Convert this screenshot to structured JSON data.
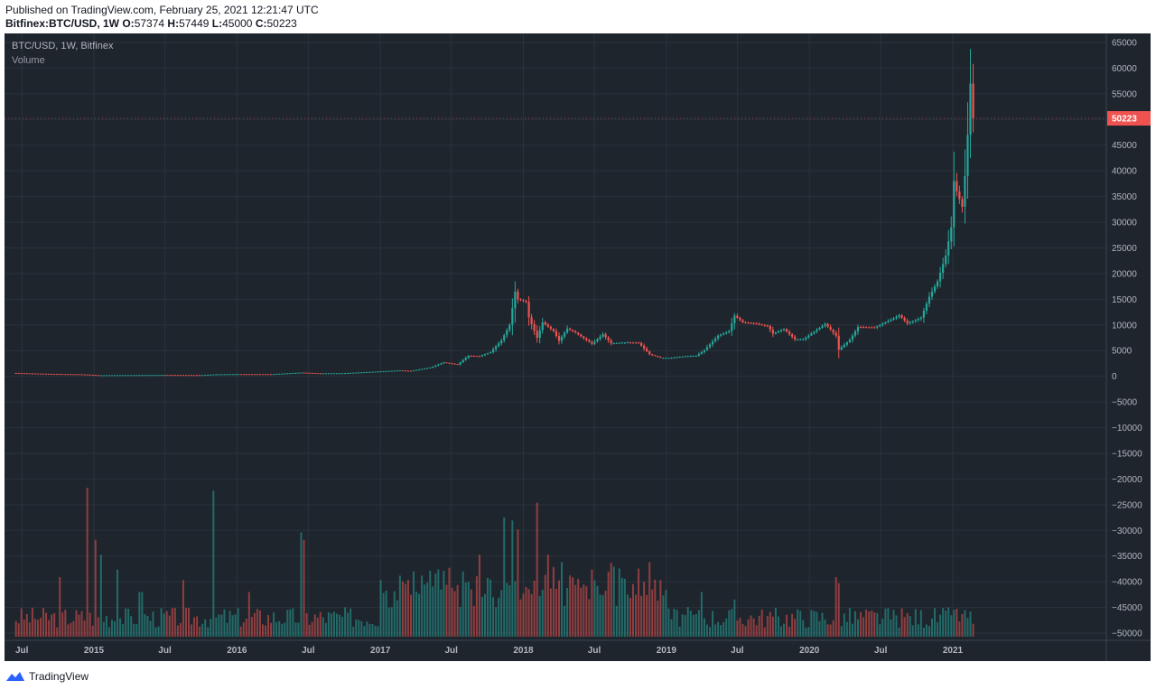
{
  "header": {
    "published": "Published on TradingView.com, February 25, 2021 12:21:47 UTC",
    "symbol": "Bitfinex:BTC/USD, 1W",
    "ohlc": [
      {
        "label": "O:",
        "value": "57374"
      },
      {
        "label": "H:",
        "value": "57449"
      },
      {
        "label": "L:",
        "value": "45000"
      },
      {
        "label": "C:",
        "value": "50223"
      }
    ]
  },
  "legend": {
    "main": "BTC/USD, 1W, Bitfinex",
    "volume": "Volume"
  },
  "footer": {
    "brand": "TradingView"
  },
  "colors": {
    "up": "#26a69a",
    "down": "#ef5350",
    "background": "#1e252d",
    "grid": "#2a323c",
    "price_badge": "#ef5350"
  },
  "chart_data": {
    "type": "candlestick",
    "x_axis": {
      "labels": [
        "Jul",
        "2015",
        "Jul",
        "2016",
        "Jul",
        "2017",
        "Jul",
        "2018",
        "Jul",
        "2019",
        "Jul",
        "2020",
        "Jul",
        "2021"
      ],
      "dates": [
        "2014-07-01",
        "2015-01-01",
        "2015-07-01",
        "2016-01-01",
        "2016-07-01",
        "2017-01-01",
        "2017-07-01",
        "2018-01-01",
        "2018-07-01",
        "2019-01-01",
        "2019-07-01",
        "2020-01-01",
        "2020-07-01",
        "2021-01-01"
      ]
    },
    "y_axis": {
      "ticks": [
        65000,
        60000,
        55000,
        50000,
        45000,
        40000,
        35000,
        30000,
        25000,
        20000,
        15000,
        10000,
        5000,
        0,
        -5000,
        -10000,
        -15000,
        -20000,
        -25000,
        -30000,
        -35000,
        -40000,
        -45000,
        -50000
      ],
      "tick_labels": [
        "65000",
        "60000",
        "55000",
        "50000",
        "45000",
        "40000",
        "35000",
        "30000",
        "25000",
        "20000",
        "15000",
        "10000",
        "5000",
        "0",
        "−5000",
        "−10000",
        "−15000",
        "−20000",
        "−25000",
        "−30000",
        "−35000",
        "−40000",
        "−45000",
        "−50000"
      ],
      "range": [
        -50000,
        65000
      ]
    },
    "last_price": 50223,
    "last_price_label": "50223",
    "price_series": {
      "name": "BTC/USD",
      "interval": "1W",
      "points": [
        [
          "2014-06-09",
          650
        ],
        [
          "2014-09-01",
          480
        ],
        [
          "2014-12-01",
          380
        ],
        [
          "2015-01-12",
          210
        ],
        [
          "2015-04-01",
          240
        ],
        [
          "2015-07-01",
          270
        ],
        [
          "2015-10-01",
          245
        ],
        [
          "2015-11-09",
          380
        ],
        [
          "2016-01-01",
          430
        ],
        [
          "2016-04-01",
          420
        ],
        [
          "2016-06-13",
          730
        ],
        [
          "2016-08-01",
          580
        ],
        [
          "2016-10-01",
          610
        ],
        [
          "2017-01-01",
          960
        ],
        [
          "2017-02-20",
          1150
        ],
        [
          "2017-03-20",
          1050
        ],
        [
          "2017-05-08",
          1700
        ],
        [
          "2017-06-12",
          2700
        ],
        [
          "2017-07-17",
          2300
        ],
        [
          "2017-08-14",
          4000
        ],
        [
          "2017-09-11",
          3900
        ],
        [
          "2017-10-09",
          4700
        ],
        [
          "2017-11-06",
          7000
        ],
        [
          "2017-11-27",
          10000
        ],
        [
          "2017-12-11",
          16500
        ],
        [
          "2017-12-18",
          15000
        ],
        [
          "2018-01-08",
          14500
        ],
        [
          "2018-01-15",
          11500
        ],
        [
          "2018-02-05",
          7500
        ],
        [
          "2018-02-19",
          10500
        ],
        [
          "2018-03-19",
          8800
        ],
        [
          "2018-04-02",
          6900
        ],
        [
          "2018-04-23",
          9300
        ],
        [
          "2018-05-14",
          8500
        ],
        [
          "2018-06-25",
          6300
        ],
        [
          "2018-07-23",
          8200
        ],
        [
          "2018-08-13",
          6400
        ],
        [
          "2018-09-24",
          6600
        ],
        [
          "2018-10-22",
          6500
        ],
        [
          "2018-11-19",
          4300
        ],
        [
          "2018-12-17",
          3600
        ],
        [
          "2019-01-14",
          3600
        ],
        [
          "2019-02-18",
          3900
        ],
        [
          "2019-03-18",
          4000
        ],
        [
          "2019-04-08",
          5100
        ],
        [
          "2019-05-13",
          7900
        ],
        [
          "2019-06-10",
          8800
        ],
        [
          "2019-06-24",
          11800
        ],
        [
          "2019-07-15",
          10500
        ],
        [
          "2019-08-12",
          10300
        ],
        [
          "2019-09-16",
          9800
        ],
        [
          "2019-09-30",
          8300
        ],
        [
          "2019-10-28",
          9200
        ],
        [
          "2019-11-25",
          7200
        ],
        [
          "2019-12-16",
          7200
        ],
        [
          "2020-01-13",
          8700
        ],
        [
          "2020-02-10",
          10200
        ],
        [
          "2020-03-09",
          7900
        ],
        [
          "2020-03-16",
          5200
        ],
        [
          "2020-04-13",
          7100
        ],
        [
          "2020-05-04",
          9600
        ],
        [
          "2020-06-15",
          9500
        ],
        [
          "2020-07-27",
          11000
        ],
        [
          "2020-08-17",
          11900
        ],
        [
          "2020-09-07",
          10300
        ],
        [
          "2020-10-12",
          11400
        ],
        [
          "2020-11-02",
          15500
        ],
        [
          "2020-11-23",
          18500
        ],
        [
          "2020-12-14",
          23500
        ],
        [
          "2020-12-28",
          29000
        ],
        [
          "2021-01-04",
          38000
        ],
        [
          "2021-01-11",
          36000
        ],
        [
          "2021-01-25",
          33000
        ],
        [
          "2021-02-01",
          39000
        ],
        [
          "2021-02-08",
          47000
        ],
        [
          "2021-02-15",
          57000
        ],
        [
          "2021-02-22",
          50223
        ]
      ]
    },
    "volume_series": {
      "name": "Volume",
      "note": "relative volume bars shown in lower pane",
      "points": [
        [
          "2014-10-06",
          0.4
        ],
        [
          "2014-12-15",
          1.0
        ],
        [
          "2015-01-05",
          0.65
        ],
        [
          "2015-01-19",
          0.55
        ],
        [
          "2015-03-01",
          0.45
        ],
        [
          "2015-05-01",
          0.3
        ],
        [
          "2015-08-17",
          0.38
        ],
        [
          "2015-11-02",
          0.98
        ],
        [
          "2016-02-01",
          0.3
        ],
        [
          "2016-06-13",
          0.7
        ],
        [
          "2016-06-20",
          0.65
        ],
        [
          "2017-01-02",
          0.38
        ],
        [
          "2017-03-13",
          0.38
        ],
        [
          "2017-06-12",
          0.25
        ],
        [
          "2017-09-11",
          0.55
        ],
        [
          "2017-11-13",
          0.8
        ],
        [
          "2017-12-04",
          0.78
        ],
        [
          "2017-12-18",
          0.72
        ],
        [
          "2018-02-05",
          0.9
        ],
        [
          "2018-03-05",
          0.55
        ],
        [
          "2018-04-09",
          0.5
        ],
        [
          "2018-06-25",
          0.35
        ],
        [
          "2018-11-19",
          0.5
        ],
        [
          "2019-04-01",
          0.3
        ],
        [
          "2019-06-24",
          0.25
        ],
        [
          "2020-03-09",
          0.4
        ],
        [
          "2020-03-16",
          0.36
        ],
        [
          "2020-07-20",
          0.1
        ],
        [
          "2021-01-04",
          0.18
        ],
        [
          "2021-02-15",
          0.15
        ]
      ]
    },
    "grid": true
  }
}
